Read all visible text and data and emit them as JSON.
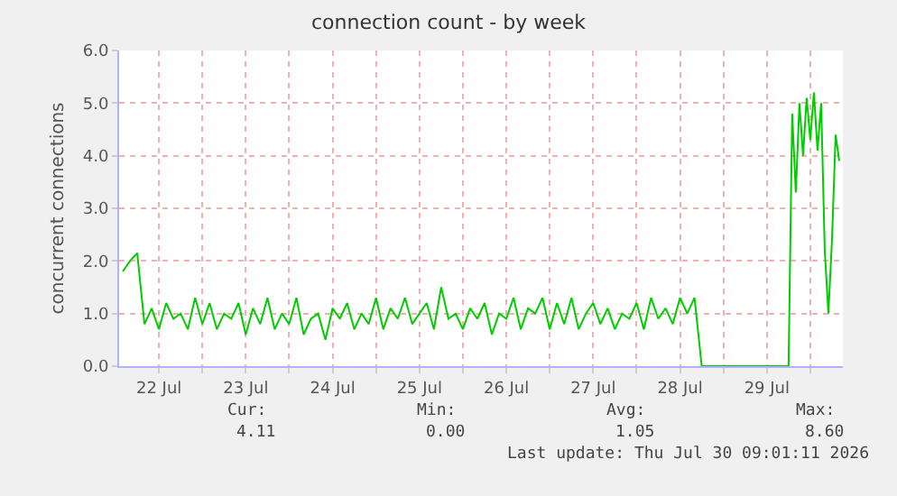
{
  "chart_data": {
    "type": "line",
    "title": "connection count - by week",
    "ylabel": "concurrent connections",
    "xlim": [
      "2026-07-22T01:00",
      "2026-07-30T09:00"
    ],
    "xticks": [
      {
        "value": "2026-07-22T12:00",
        "label": "22 Jul"
      },
      {
        "value": "2026-07-23T00:00",
        "label": null
      },
      {
        "value": "2026-07-23T12:00",
        "label": "23 Jul"
      },
      {
        "value": "2026-07-24T00:00",
        "label": null
      },
      {
        "value": "2026-07-24T12:00",
        "label": "24 Jul"
      },
      {
        "value": "2026-07-25T00:00",
        "label": null
      },
      {
        "value": "2026-07-25T12:00",
        "label": "25 Jul"
      },
      {
        "value": "2026-07-26T00:00",
        "label": null
      },
      {
        "value": "2026-07-26T12:00",
        "label": "26 Jul"
      },
      {
        "value": "2026-07-27T00:00",
        "label": null
      },
      {
        "value": "2026-07-27T12:00",
        "label": "27 Jul"
      },
      {
        "value": "2026-07-28T00:00",
        "label": null
      },
      {
        "value": "2026-07-28T12:00",
        "label": "28 Jul"
      },
      {
        "value": "2026-07-29T00:00",
        "label": null
      },
      {
        "value": "2026-07-29T12:00",
        "label": "29 Jul"
      },
      {
        "value": "2026-07-30T00:00",
        "label": null
      }
    ],
    "ylim": [
      0,
      6
    ],
    "yticks": [
      {
        "value": 0,
        "label": "0.0"
      },
      {
        "value": 1,
        "label": "1.0"
      },
      {
        "value": 2,
        "label": "2.0"
      },
      {
        "value": 3,
        "label": "3.0"
      },
      {
        "value": 4,
        "label": "4.0"
      },
      {
        "value": 5,
        "label": "5.0"
      },
      {
        "value": 6,
        "label": "6.0"
      }
    ],
    "grid": true,
    "marker": "none",
    "line_style": "solid",
    "x": [
      "2026-07-22T02:00",
      "2026-07-22T04:00",
      "2026-07-22T06:00",
      "2026-07-22T08:00",
      "2026-07-22T10:00",
      "2026-07-22T12:00",
      "2026-07-22T14:00",
      "2026-07-22T16:00",
      "2026-07-22T18:00",
      "2026-07-22T20:00",
      "2026-07-22T22:00",
      "2026-07-23T00:00",
      "2026-07-23T02:00",
      "2026-07-23T04:00",
      "2026-07-23T06:00",
      "2026-07-23T08:00",
      "2026-07-23T10:00",
      "2026-07-23T12:00",
      "2026-07-23T14:00",
      "2026-07-23T16:00",
      "2026-07-23T18:00",
      "2026-07-23T20:00",
      "2026-07-23T22:00",
      "2026-07-24T00:00",
      "2026-07-24T02:00",
      "2026-07-24T04:00",
      "2026-07-24T06:00",
      "2026-07-24T08:00",
      "2026-07-24T10:00",
      "2026-07-24T12:00",
      "2026-07-24T14:00",
      "2026-07-24T16:00",
      "2026-07-24T18:00",
      "2026-07-24T20:00",
      "2026-07-24T22:00",
      "2026-07-25T00:00",
      "2026-07-25T02:00",
      "2026-07-25T04:00",
      "2026-07-25T06:00",
      "2026-07-25T08:00",
      "2026-07-25T10:00",
      "2026-07-25T12:00",
      "2026-07-25T14:00",
      "2026-07-25T16:00",
      "2026-07-25T18:00",
      "2026-07-25T20:00",
      "2026-07-25T22:00",
      "2026-07-26T00:00",
      "2026-07-26T02:00",
      "2026-07-26T04:00",
      "2026-07-26T06:00",
      "2026-07-26T08:00",
      "2026-07-26T10:00",
      "2026-07-26T12:00",
      "2026-07-26T14:00",
      "2026-07-26T16:00",
      "2026-07-26T18:00",
      "2026-07-26T20:00",
      "2026-07-26T22:00",
      "2026-07-27T00:00",
      "2026-07-27T02:00",
      "2026-07-27T04:00",
      "2026-07-27T06:00",
      "2026-07-27T08:00",
      "2026-07-27T10:00",
      "2026-07-27T12:00",
      "2026-07-27T14:00",
      "2026-07-27T16:00",
      "2026-07-27T18:00",
      "2026-07-27T20:00",
      "2026-07-27T22:00",
      "2026-07-28T00:00",
      "2026-07-28T02:00",
      "2026-07-28T04:00",
      "2026-07-28T06:00",
      "2026-07-28T08:00",
      "2026-07-28T10:00",
      "2026-07-28T12:00",
      "2026-07-28T14:00",
      "2026-07-28T16:00",
      "2026-07-28T18:00",
      "2026-07-29T18:00",
      "2026-07-29T19:00",
      "2026-07-29T20:00",
      "2026-07-29T21:00",
      "2026-07-29T22:00",
      "2026-07-29T23:00",
      "2026-07-30T00:00",
      "2026-07-30T01:00",
      "2026-07-30T02:00",
      "2026-07-30T03:00",
      "2026-07-30T04:00",
      "2026-07-30T05:00",
      "2026-07-30T06:00",
      "2026-07-30T07:00",
      "2026-07-30T08:00"
    ],
    "series": [
      {
        "color": "#00cc00",
        "values": [
          1.8,
          2.0,
          2.15,
          0.8,
          1.1,
          0.7,
          1.2,
          0.9,
          1.0,
          0.7,
          1.3,
          0.8,
          1.2,
          0.7,
          1.0,
          0.9,
          1.2,
          0.6,
          1.1,
          0.8,
          1.3,
          0.7,
          1.0,
          0.8,
          1.3,
          0.6,
          0.9,
          1.0,
          0.5,
          1.1,
          0.9,
          1.2,
          0.7,
          1.0,
          0.8,
          1.3,
          0.7,
          1.1,
          0.9,
          1.3,
          0.8,
          1.0,
          1.2,
          0.7,
          1.5,
          0.9,
          1.0,
          0.7,
          1.1,
          0.9,
          1.2,
          0.6,
          1.0,
          0.9,
          1.3,
          0.7,
          1.1,
          1.0,
          1.3,
          0.7,
          1.2,
          0.8,
          1.3,
          0.7,
          1.0,
          1.2,
          0.8,
          1.1,
          0.7,
          1.0,
          0.9,
          1.2,
          0.7,
          1.3,
          0.9,
          1.1,
          0.8,
          1.3,
          1.0,
          1.3,
          0.0,
          0.0,
          4.8,
          3.3,
          5.0,
          4.0,
          5.1,
          4.3,
          5.2,
          4.1,
          5.0,
          2.2,
          1.0,
          2.4,
          4.4,
          3.9
        ]
      }
    ],
    "annotations": [
      "Cur:",
      "Min:",
      "Avg:",
      "Max:",
      "4.11",
      "0.00",
      "1.05",
      "8.60",
      "Last update: Thu Jul 30 09:01:11 2026"
    ]
  }
}
